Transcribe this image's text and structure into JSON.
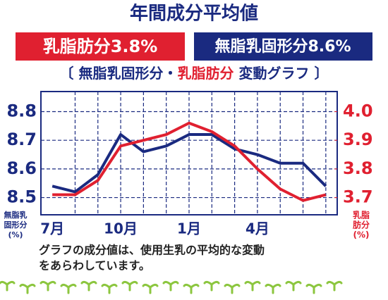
{
  "chart_data": {
    "type": "line",
    "title": "年間成分平均値",
    "badges": [
      {
        "text": "乳脂肪分3.8%",
        "color": "#e02030"
      },
      {
        "text": "無脂乳固形分8.6%",
        "color": "#1a2a80"
      }
    ],
    "subtitle": [
      "〔 ",
      "無脂乳固形分・",
      "乳脂肪分",
      " 変動グラフ 〕"
    ],
    "categories": [
      "7月",
      null,
      null,
      "10月",
      null,
      null,
      "1月",
      null,
      null,
      "4月",
      null,
      null,
      null
    ],
    "series": [
      {
        "name": "無脂乳固形分",
        "color": "#1a2a80",
        "values": [
          8.54,
          8.52,
          8.58,
          8.72,
          8.66,
          8.68,
          8.72,
          8.72,
          8.67,
          8.65,
          8.62,
          8.62,
          8.54
        ]
      },
      {
        "name": "乳脂肪分",
        "color": "#e02030",
        "axis": "y2",
        "values": [
          3.71,
          3.71,
          3.76,
          3.88,
          3.9,
          3.92,
          3.96,
          3.93,
          3.88,
          3.8,
          3.73,
          3.69,
          3.71
        ]
      }
    ],
    "ylim": [
      8.44,
      8.87
    ],
    "yticks": [
      8.5,
      8.6,
      8.7,
      8.8
    ],
    "y2lim": [
      3.64,
      4.07
    ],
    "y2ticks": [
      3.7,
      3.8,
      3.9,
      {
        "value": 4,
        "label": "4.0"
      }
    ],
    "ylabel": [
      "無脂乳",
      "固形分",
      "(%)"
    ],
    "y2label": [
      "乳脂",
      "肪分",
      "(%)"
    ],
    "grid": true,
    "note": [
      "グラフの成分値は、使用生乳の平均的な変動",
      "をあらわしています。"
    ]
  }
}
